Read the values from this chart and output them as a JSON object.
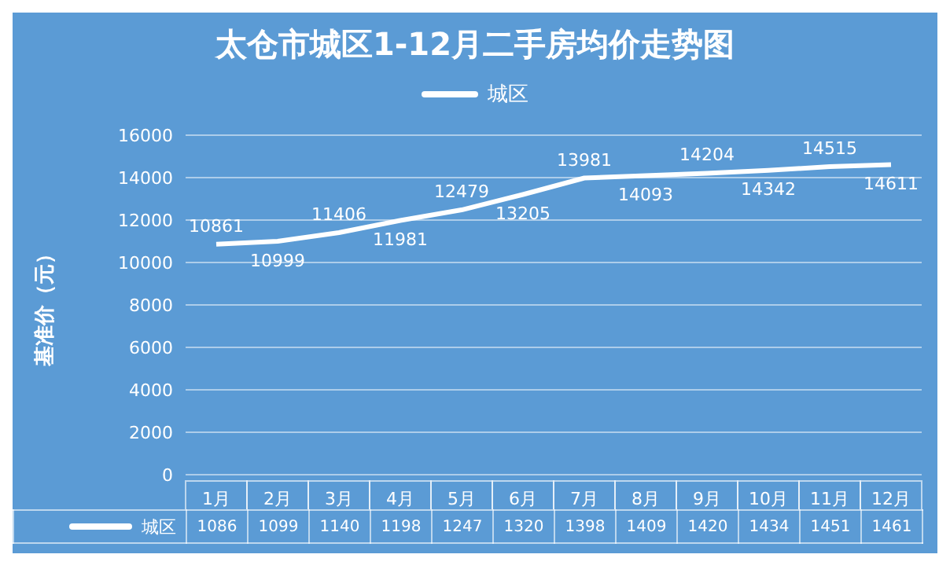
{
  "chart_data": {
    "type": "line",
    "title": "太仓市城区1-12月二手房均价走势图",
    "ylabel": "基准价（元）",
    "categories": [
      "1月",
      "2月",
      "3月",
      "4月",
      "5月",
      "6月",
      "7月",
      "8月",
      "9月",
      "10月",
      "11月",
      "12月"
    ],
    "series": [
      {
        "name": "城区",
        "color": "#ffffff",
        "values": [
          10861,
          10999,
          11406,
          11981,
          12479,
          13205,
          13981,
          14093,
          14204,
          14342,
          14515,
          14611
        ],
        "value_labels": [
          "10861",
          "10999",
          "11406",
          "11981",
          "12479",
          "13205",
          "13981",
          "14093",
          "14204",
          "14342",
          "14515",
          "14611"
        ]
      }
    ],
    "ylim": [
      0,
      16000
    ],
    "yticks": [
      0,
      2000,
      4000,
      6000,
      8000,
      10000,
      12000,
      14000,
      16000
    ],
    "grid": "y",
    "legend": "top",
    "marker": "none",
    "line_style": "solid",
    "annotations": [
      "1086",
      "1099",
      "1140",
      "1198",
      "1247",
      "1320",
      "1398",
      "1409",
      "1420",
      "1434",
      "1451",
      "1461"
    ]
  }
}
